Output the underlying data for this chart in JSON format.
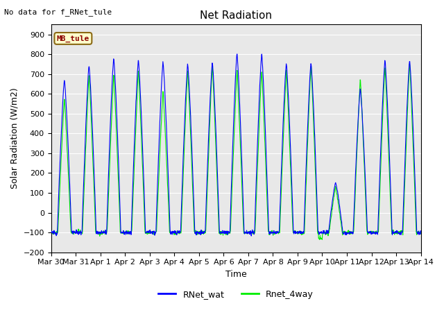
{
  "title": "Net Radiation",
  "ylabel": "Solar Radiation (W/m2)",
  "xlabel": "Time",
  "annotation": "No data for f_RNet_tule",
  "station_label": "MB_tule",
  "ylim": [
    -200,
    950
  ],
  "yticks": [
    -200,
    -100,
    0,
    100,
    200,
    300,
    400,
    500,
    600,
    700,
    800,
    900
  ],
  "xtick_labels": [
    "Mar 30",
    "Mar 31",
    "Apr 1",
    "Apr 2",
    "Apr 3",
    "Apr 4",
    "Apr 5",
    "Apr 6",
    "Apr 7",
    "Apr 8",
    "Apr 9",
    "Apr 10",
    "Apr 11",
    "Apr 12",
    "Apr 13",
    "Apr 14"
  ],
  "legend_entries": [
    "RNet_wat",
    "Rnet_4way"
  ],
  "line_colors": [
    "blue",
    "#00ee00"
  ],
  "background_color": "#e8e8e8",
  "grid_color": "white",
  "title_fontsize": 11,
  "label_fontsize": 9,
  "tick_fontsize": 8,
  "peaks_wat": [
    670,
    745,
    780,
    770,
    760,
    750,
    760,
    805,
    800,
    755,
    755,
    150,
    625,
    770,
    770
  ],
  "peaks_4way": [
    580,
    700,
    700,
    720,
    620,
    720,
    750,
    725,
    720,
    720,
    750,
    130,
    680,
    740,
    760
  ],
  "night_level": -100,
  "days": 15,
  "pts_per_day": 96
}
